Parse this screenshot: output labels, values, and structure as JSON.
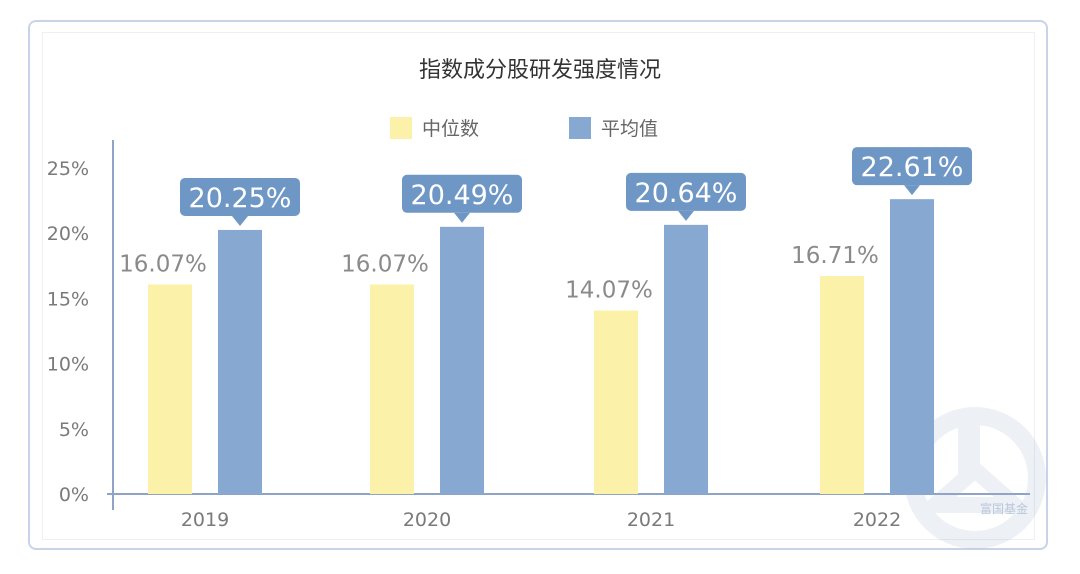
{
  "chart_data": {
    "type": "bar",
    "title": "指数成分股研发强度情况",
    "categories": [
      "2019",
      "2020",
      "2021",
      "2022"
    ],
    "series": [
      {
        "name": "中位数",
        "values": [
          16.07,
          16.07,
          14.07,
          16.71
        ],
        "labels": [
          "16.07%",
          "16.07%",
          "14.07%",
          "16.71%"
        ],
        "color": "#fbf1a9"
      },
      {
        "name": "平均值",
        "values": [
          20.25,
          20.49,
          20.64,
          22.61
        ],
        "labels": [
          "20.25%",
          "20.49%",
          "20.64%",
          "22.61%"
        ],
        "color": "#87a8d0"
      }
    ],
    "y_ticks": [
      "0%",
      "5%",
      "10%",
      "15%",
      "20%",
      "25%"
    ],
    "ylim": [
      0,
      25
    ],
    "grid": false,
    "legend_position": "top-center",
    "callout_color": "#6f97c6"
  },
  "watermark": "富国基金"
}
